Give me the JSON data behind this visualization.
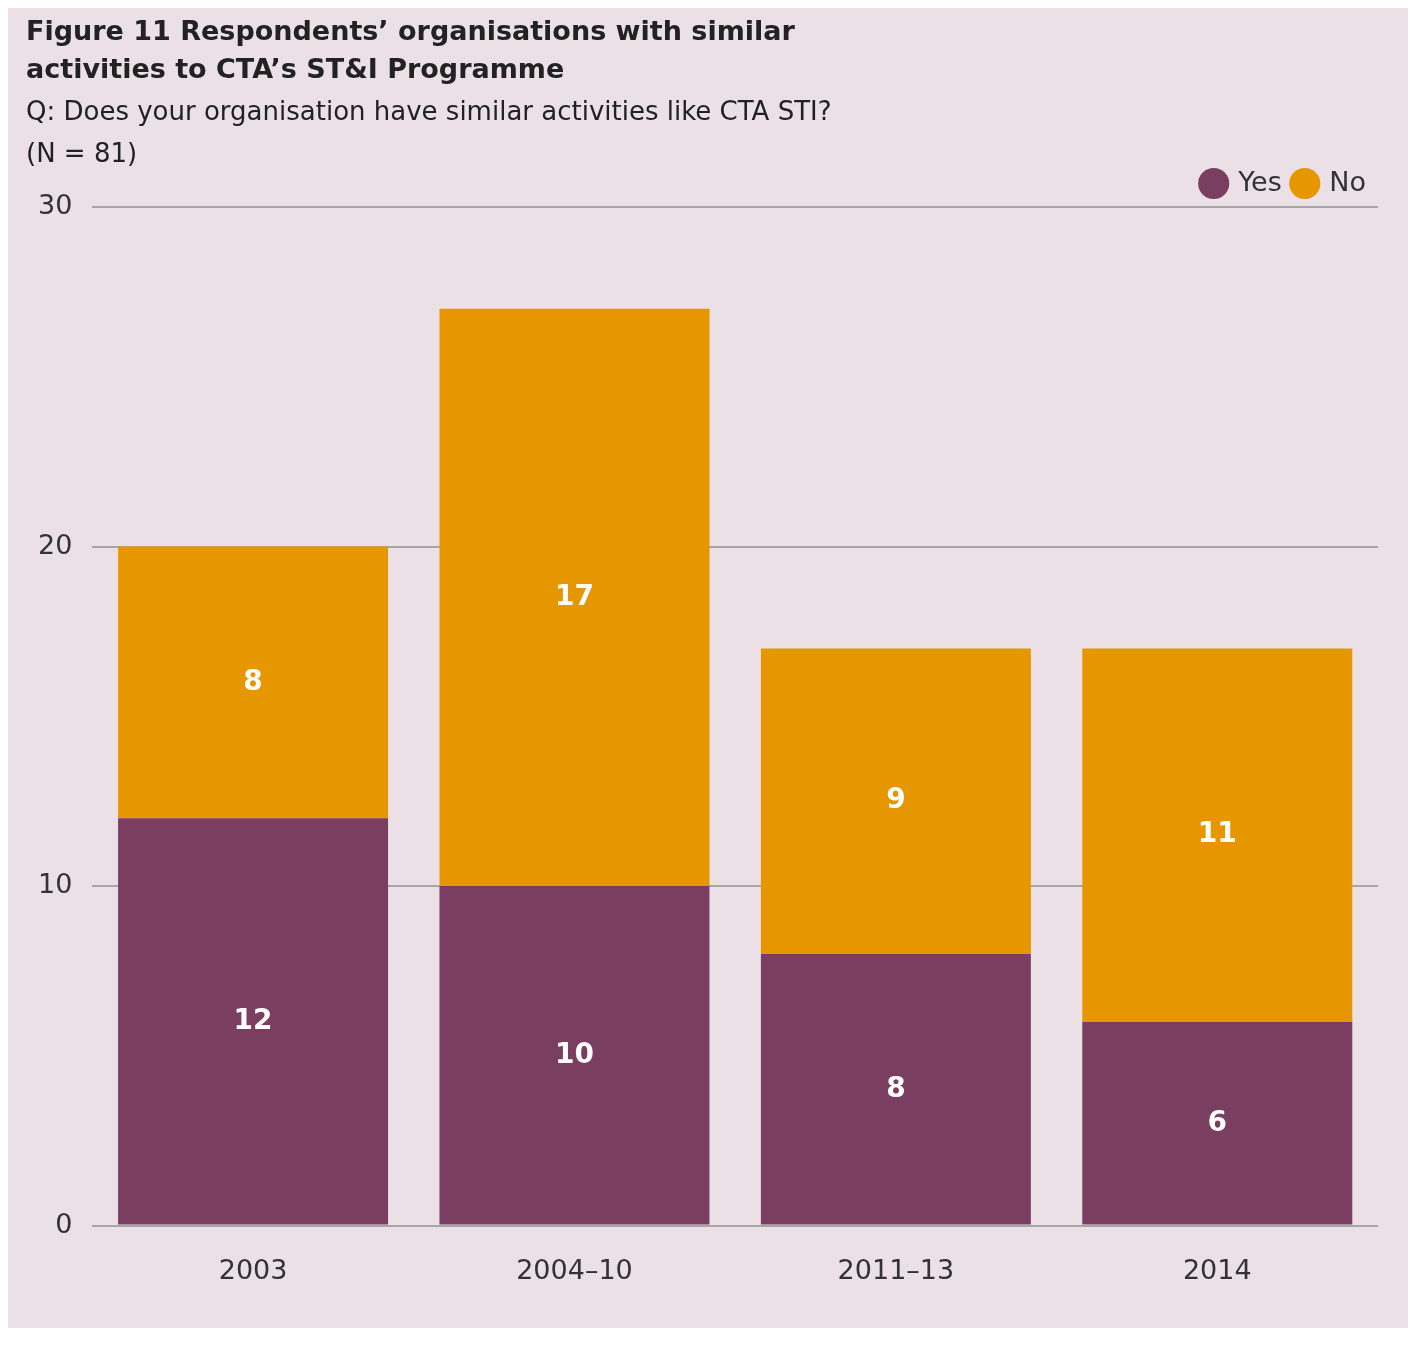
{
  "chart_data": {
    "type": "bar",
    "title": "Figure 11 Respondents’ organisations with similar activities to CTA’s ST&I Programme",
    "subtitle": "Q: Does your organisation have similar activities like CTA STI?",
    "annotations": [
      "(N = 81)"
    ],
    "categories": [
      "2003",
      "2004–10",
      "2011–13",
      "2014"
    ],
    "series": [
      {
        "name": "Yes",
        "color": "#7a3e60",
        "values": [
          12,
          10,
          8,
          6
        ]
      },
      {
        "name": "No",
        "color": "#e69700",
        "values": [
          8,
          17,
          9,
          11
        ]
      }
    ],
    "stacked": true,
    "ylim": [
      0,
      30
    ],
    "yticks": [
      0,
      10,
      20,
      30
    ],
    "grid": "y",
    "legend": "top right",
    "data_labels": true
  }
}
